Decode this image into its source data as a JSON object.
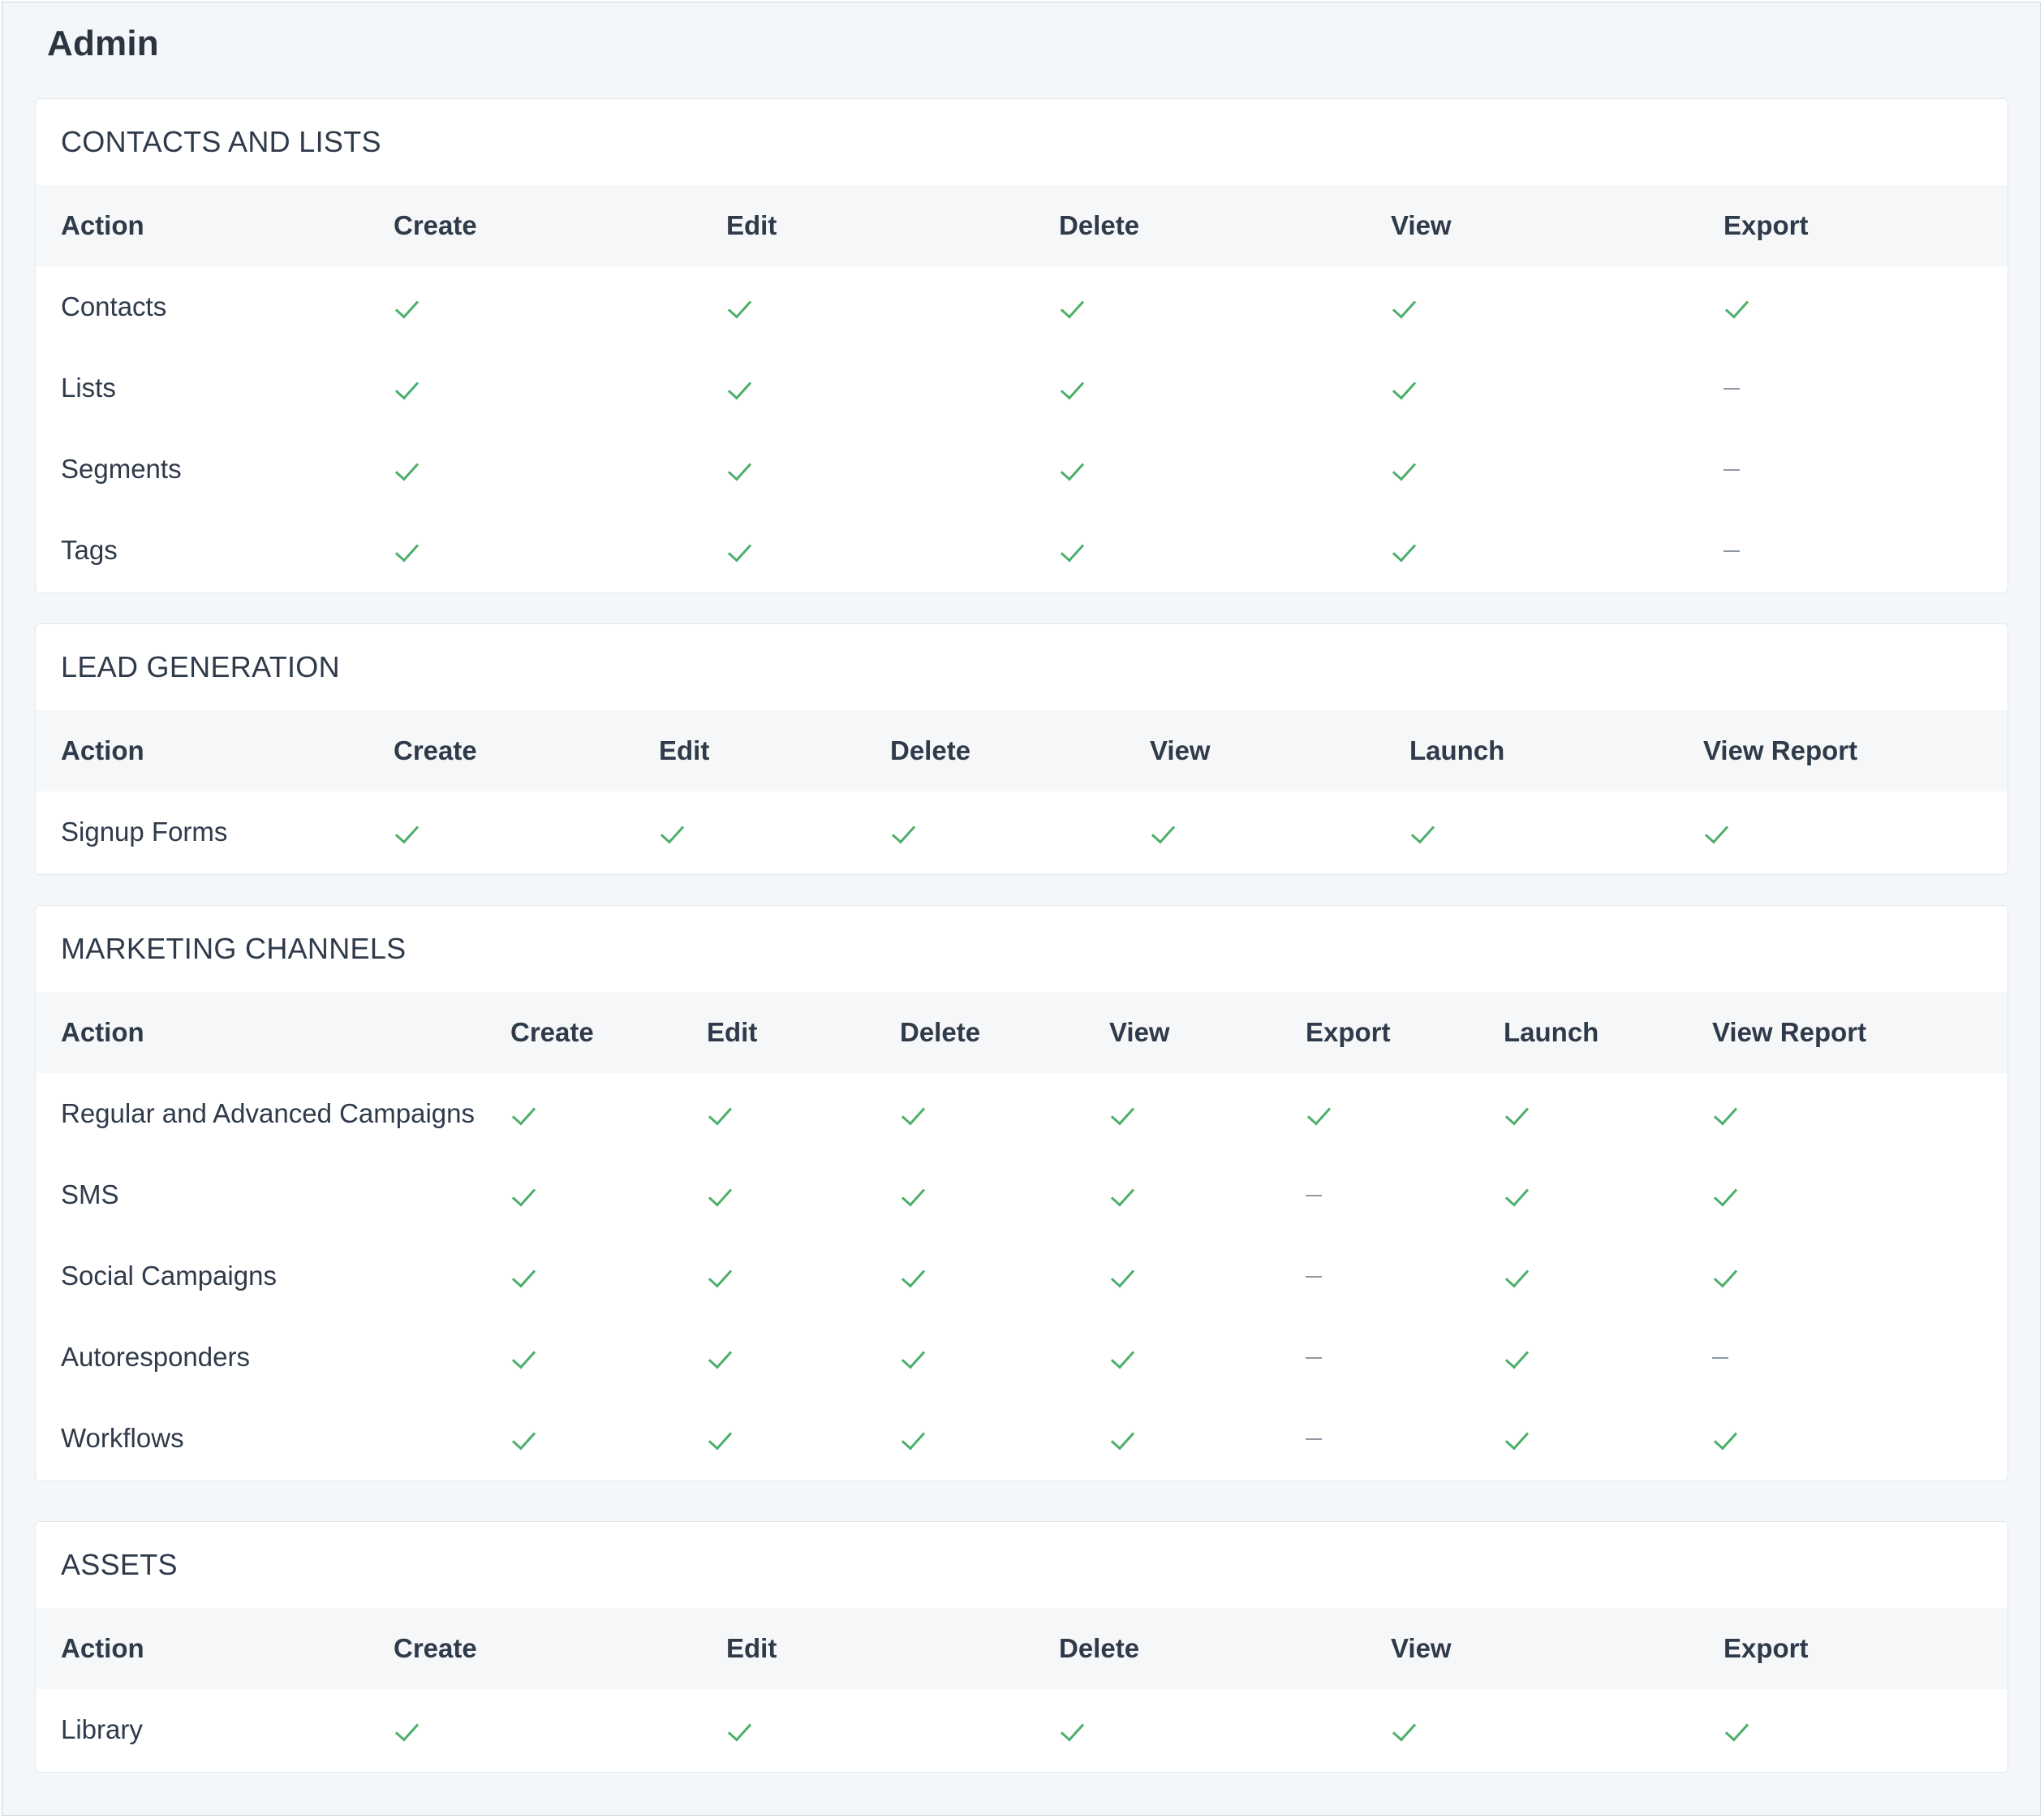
{
  "page": {
    "title": "Admin"
  },
  "sections": [
    {
      "title": "CONTACTS AND LISTS",
      "headers": [
        "Action",
        "Create",
        "Edit",
        "Delete",
        "View",
        "Export"
      ],
      "rows": [
        {
          "label": "Contacts",
          "values": [
            true,
            true,
            true,
            true,
            true
          ]
        },
        {
          "label": "Lists",
          "values": [
            true,
            true,
            true,
            true,
            false
          ]
        },
        {
          "label": "Segments",
          "values": [
            true,
            true,
            true,
            true,
            false
          ]
        },
        {
          "label": "Tags",
          "values": [
            true,
            true,
            true,
            true,
            false
          ]
        }
      ]
    },
    {
      "title": "LEAD GENERATION",
      "headers": [
        "Action",
        "Create",
        "Edit",
        "Delete",
        "View",
        "Launch",
        "View Report"
      ],
      "rows": [
        {
          "label": "Signup Forms",
          "values": [
            true,
            true,
            true,
            true,
            true,
            true
          ]
        }
      ]
    },
    {
      "title": "MARKETING CHANNELS",
      "headers": [
        "Action",
        "Create",
        "Edit",
        "Delete",
        "View",
        "Export",
        "Launch",
        "View Report"
      ],
      "rows": [
        {
          "label": "Regular and Advanced Campaigns",
          "values": [
            true,
            true,
            true,
            true,
            true,
            true,
            true
          ]
        },
        {
          "label": "SMS",
          "values": [
            true,
            true,
            true,
            true,
            false,
            true,
            true
          ]
        },
        {
          "label": "Social Campaigns",
          "values": [
            true,
            true,
            true,
            true,
            false,
            true,
            true
          ]
        },
        {
          "label": "Autoresponders",
          "values": [
            true,
            true,
            true,
            true,
            false,
            true,
            false
          ]
        },
        {
          "label": "Workflows",
          "values": [
            true,
            true,
            true,
            true,
            false,
            true,
            true
          ]
        }
      ]
    },
    {
      "title": "ASSETS",
      "headers": [
        "Action",
        "Create",
        "Edit",
        "Delete",
        "View",
        "Export"
      ],
      "rows": [
        {
          "label": "Library",
          "values": [
            true,
            true,
            true,
            true,
            true
          ]
        }
      ]
    }
  ],
  "colors": {
    "check": "#4caf6a",
    "dash": "#8f99a4",
    "header_bg": "#f6f7f8",
    "page_bg": "#f3f7fa"
  },
  "icons": {
    "allowed": "check-icon",
    "not_applicable": "dash-icon"
  }
}
